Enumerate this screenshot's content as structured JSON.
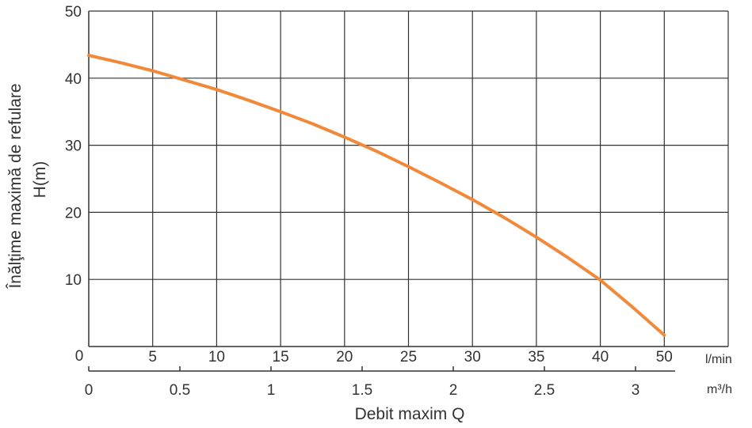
{
  "chart_data": {
    "type": "line",
    "ylabel_line1": "Înălţime maximă de refulare",
    "ylabel_line2": "H(m)",
    "xlabel": "Debit maxim Q",
    "ylim": [
      0,
      50
    ],
    "y_ticks": [
      0,
      10,
      20,
      30,
      40,
      50
    ],
    "x_top_unit": "l/min",
    "x_top_ticks": [
      5,
      10,
      15,
      20,
      25,
      30,
      35,
      40,
      50
    ],
    "x_top_lim": [
      0,
      45
    ],
    "x_bottom_unit": "m³/h",
    "x_bottom_ticks": [
      "0",
      "0.5",
      "1",
      "1.5",
      "2",
      "2.5",
      "3"
    ],
    "x_bottom_values": [
      0,
      0.5,
      1,
      1.5,
      2,
      2.5,
      3
    ],
    "x_bottom_lim": [
      0,
      3.6
    ],
    "grid": true,
    "colors": {
      "curve": "#f08a3a",
      "grid": "#333333",
      "text": "#333333"
    },
    "series": [
      {
        "x": [
          0,
          2.5,
          5,
          7.5,
          10,
          12.5,
          15,
          17.5,
          20,
          22.5,
          25,
          27.5,
          30,
          32.5,
          35,
          37.5,
          40,
          42.5,
          45
        ],
        "y": [
          43.4,
          42.3,
          41.1,
          39.7,
          38.3,
          36.7,
          35.0,
          33.2,
          31.2,
          29.1,
          26.8,
          24.4,
          21.9,
          19.2,
          16.3,
          13.2,
          9.9,
          5.9,
          1.7
        ]
      }
    ]
  }
}
